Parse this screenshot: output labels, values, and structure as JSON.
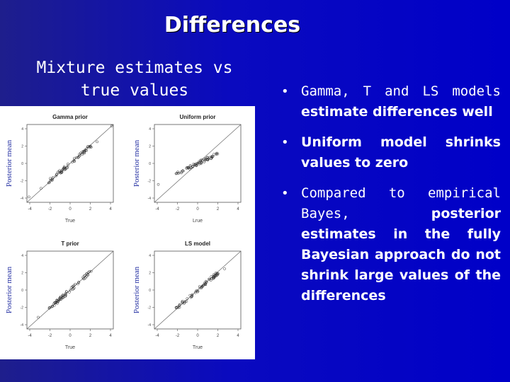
{
  "slide": {
    "title": "Differences",
    "subtitle": "Mixture estimates vs true values"
  },
  "figure": {
    "panels": [
      {
        "title": "Gamma prior",
        "ylabel": "Posterior mean",
        "xlabel": "True",
        "show_ylabel": true
      },
      {
        "title": "Uniform prior",
        "ylabel": "Posterior mean",
        "xlabel": "Lrue",
        "show_ylabel": true
      },
      {
        "title": "T prior",
        "ylabel": "Posterior mean",
        "xlabel": "True",
        "show_ylabel": true
      },
      {
        "title": "LS model",
        "ylabel": "Posterior mean",
        "xlabel": "True",
        "show_ylabel": true
      }
    ],
    "x_ticks": [
      "-4",
      "-2",
      "0",
      "2",
      "4"
    ],
    "y_ticks": [
      "4",
      "2",
      "0",
      "-2",
      "-4"
    ]
  },
  "bullets": [
    {
      "plain": "Gamma, T and LS models ",
      "bold": "estimate differences well"
    },
    {
      "plain": "",
      "bold": "Uniform model shrinks values to zero"
    },
    {
      "plain": "Compared to empirical Bayes, ",
      "bold": "posterior estimates in the fully Bayesian approach do not shrink large values of the differences"
    }
  ]
}
